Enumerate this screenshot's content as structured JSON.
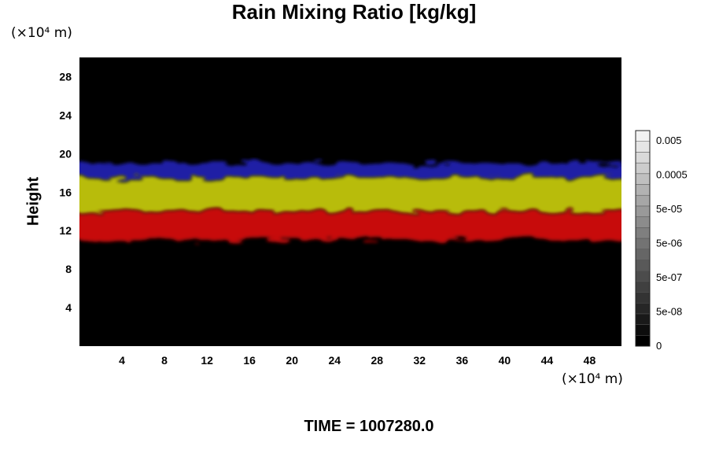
{
  "chart_data": {
    "type": "heatmap",
    "title": "Rain Mixing Ratio [kg/kg]",
    "ylabel": "Height",
    "x_unit": "(×10⁴ m)",
    "y_unit": "(×10⁴ m)",
    "xlim": [
      0,
      51
    ],
    "ylim": [
      0,
      30
    ],
    "x_ticks": [
      4,
      8,
      12,
      16,
      20,
      24,
      28,
      32,
      36,
      40,
      44,
      48
    ],
    "y_ticks": [
      4,
      8,
      12,
      16,
      20,
      24,
      28
    ],
    "background_color": "#000000",
    "layers": [
      {
        "color": "#2020b4",
        "y_bottom": 17.5,
        "y_top": 19.0
      },
      {
        "color": "#c8cc10",
        "y_bottom": 14.0,
        "y_top": 17.5
      },
      {
        "color": "#d81010",
        "y_bottom": 11.0,
        "y_top": 14.0
      }
    ],
    "colorbar": {
      "labels": [
        "0.005",
        "0.0005",
        "5e-05",
        "5e-06",
        "5e-07",
        "5e-08",
        "0"
      ],
      "levels": 20,
      "color_low": "#000000",
      "color_high": "#f2f2f2"
    },
    "footer": "TIME = 1007280.0"
  }
}
